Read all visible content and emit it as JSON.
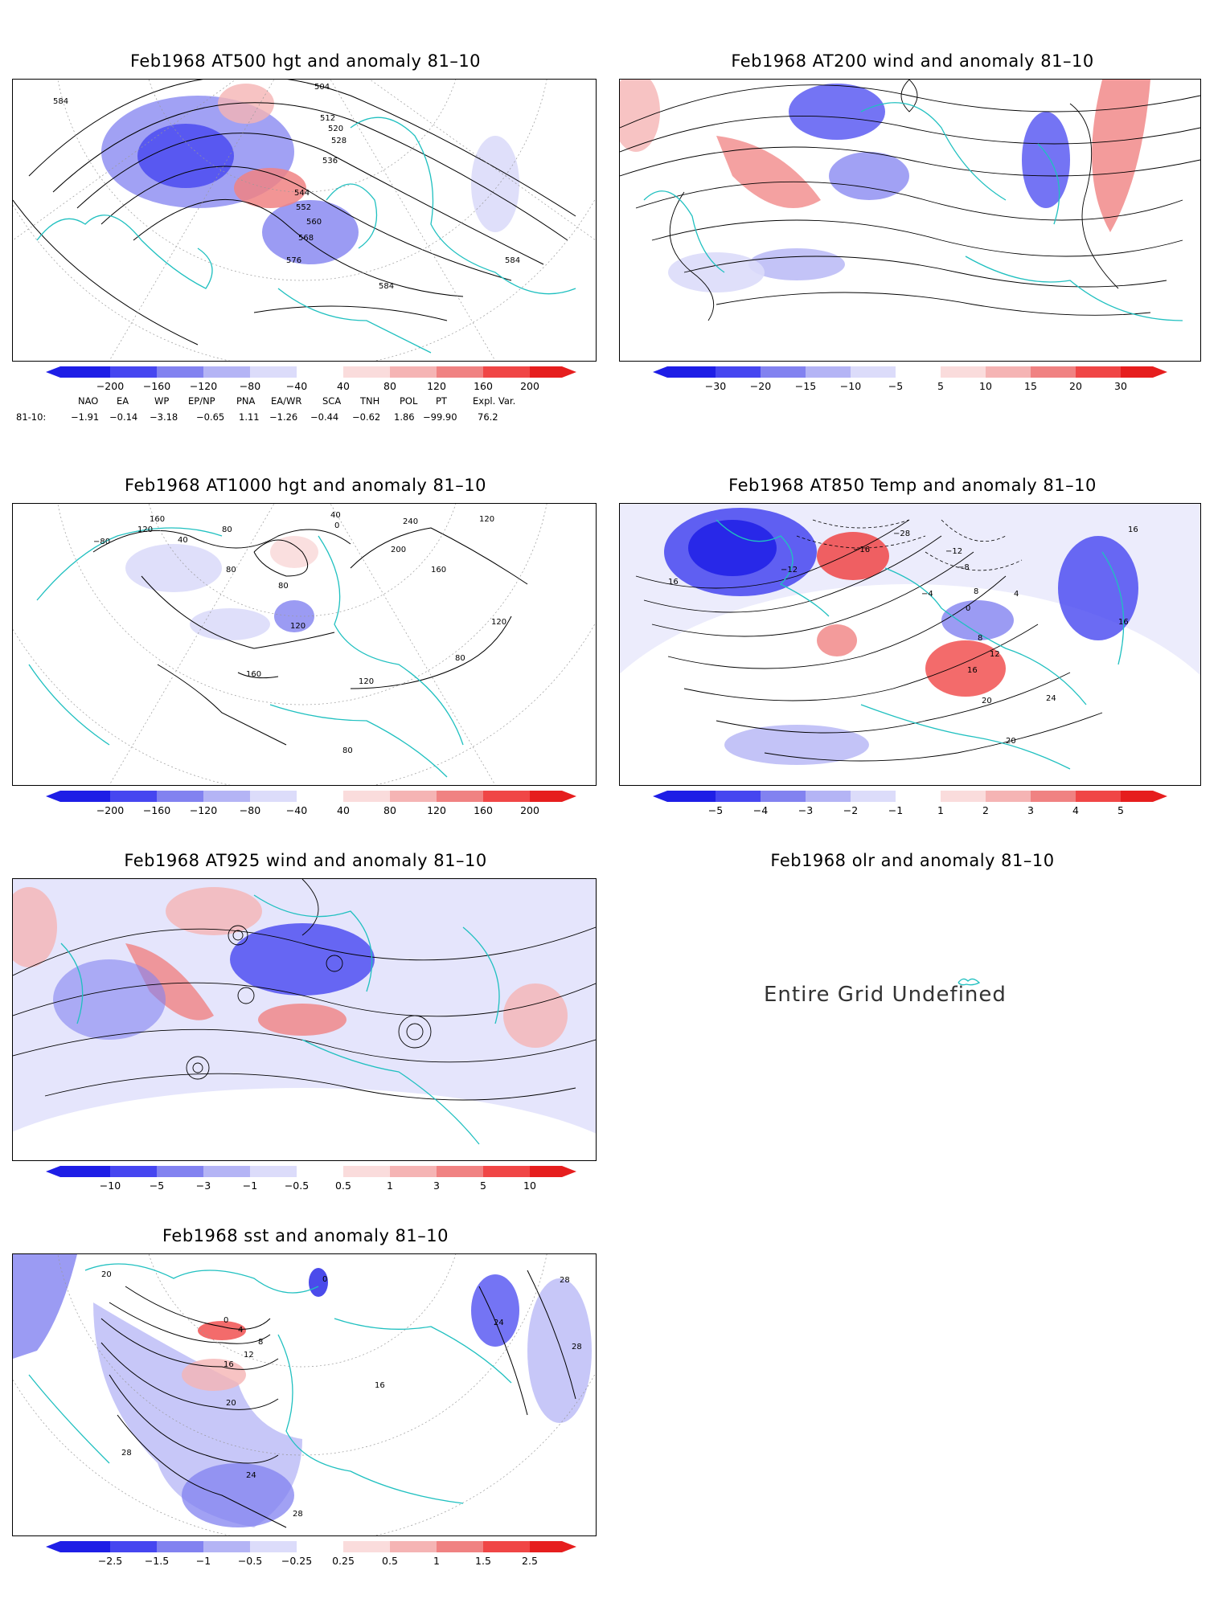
{
  "panels": [
    {
      "id": "p500",
      "title": "Feb1968 AT500 hgt and anomaly 81–10",
      "contour_labels": [
        "584",
        "504",
        "512",
        "520",
        "528",
        "536",
        "544",
        "552",
        "560",
        "568",
        "576",
        "584",
        "584"
      ],
      "colorbar": [
        "−200",
        "−160",
        "−120",
        "−80",
        "−40",
        "40",
        "80",
        "120",
        "160",
        "200"
      ]
    },
    {
      "id": "p200",
      "title": "Feb1968 AT200 wind and anomaly 81–10",
      "colorbar": [
        "−30",
        "−20",
        "−15",
        "−10",
        "−5",
        "5",
        "10",
        "15",
        "20",
        "30"
      ]
    },
    {
      "id": "p1000",
      "title": "Feb1968 AT1000 hgt and anomaly 81–10",
      "contour_labels": [
        "160",
        "120",
        "40",
        "80",
        "0",
        "80",
        "40",
        "240",
        "120",
        "200",
        "160",
        "80",
        "−80",
        "120",
        "120",
        "160",
        "80",
        "120",
        "80"
      ],
      "colorbar": [
        "−200",
        "−160",
        "−120",
        "−80",
        "−40",
        "40",
        "80",
        "120",
        "160",
        "200"
      ]
    },
    {
      "id": "p850",
      "title": "Feb1968 AT850 Temp and anomaly 81–10",
      "contour_labels": [
        "16",
        "−28",
        "−12",
        "−16",
        "−12",
        "−8",
        "−4",
        "0",
        "4",
        "8",
        "12",
        "16",
        "16",
        "20",
        "24",
        "20",
        "16",
        "8"
      ],
      "colorbar": [
        "−5",
        "−4",
        "−3",
        "−2",
        "−1",
        "1",
        "2",
        "3",
        "4",
        "5"
      ]
    },
    {
      "id": "p925",
      "title": "Feb1968 AT925 wind and anomaly 81–10",
      "colorbar": [
        "−10",
        "−5",
        "−3",
        "−1",
        "−0.5",
        "0.5",
        "1",
        "3",
        "5",
        "10"
      ]
    },
    {
      "id": "polr",
      "title": "Feb1968 olr and anomaly 81–10",
      "message": "Entire Grid Undefined"
    },
    {
      "id": "psst",
      "title": "Feb1968 sst and anomaly 81–10",
      "contour_labels": [
        "20",
        "0",
        "4",
        "8",
        "12",
        "16",
        "20",
        "24",
        "28",
        "28",
        "28",
        "24",
        "28",
        "16",
        "0"
      ],
      "colorbar": [
        "−2.5",
        "−1.5",
        "−1",
        "−0.5",
        "−0.25",
        "0.25",
        "0.5",
        "1",
        "1.5",
        "2.5"
      ]
    }
  ],
  "teleconnections": {
    "headers": [
      "NAO",
      "EA",
      "WP",
      "EP/NP",
      "PNA",
      "EA/WR",
      "SCA",
      "TNH",
      "POL",
      "PT",
      "Expl. Var."
    ],
    "row_label": "81-10:",
    "values": [
      "−1.91",
      "−0.14",
      "−3.18",
      "−0.65",
      "1.11",
      "−1.26",
      "−0.44",
      "−0.62",
      "1.86",
      "−99.90",
      "76.2"
    ]
  },
  "colors": {
    "coast": "#20c0c0",
    "contour": "#000000",
    "neg": [
      "#1e1ee6",
      "#4646f0",
      "#8282f0",
      "#b4b4f5",
      "#dcdcfa"
    ],
    "pos": [
      "#fadcdc",
      "#f5b4b4",
      "#f08282",
      "#f04646",
      "#e61e1e"
    ]
  }
}
